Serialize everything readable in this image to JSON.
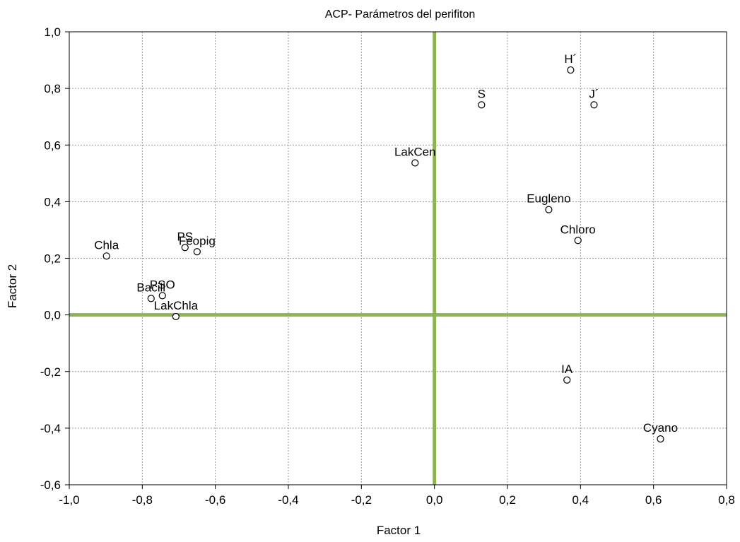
{
  "chart_data": {
    "type": "scatter",
    "title": "ACP- Parámetros del perifiton",
    "xlabel": "Factor 1",
    "ylabel": "Factor 2",
    "xlim": [
      -1.0,
      0.8
    ],
    "ylim": [
      -0.6,
      1.0
    ],
    "x_ticks": [
      "-1,0",
      "-0,8",
      "-0,6",
      "-0,4",
      "-0,2",
      "0,0",
      "0,2",
      "0,4",
      "0,6",
      "0,8"
    ],
    "y_ticks": [
      "-0,6",
      "-0,4",
      "-0,2",
      "0,0",
      "0,2",
      "0,4",
      "0,6",
      "0,8",
      "1,0"
    ],
    "grid": true,
    "reference_lines": {
      "x": 0.0,
      "y": 0.0,
      "color": "#8db356"
    },
    "points": [
      {
        "label": "H´",
        "x": 0.373,
        "y": 0.865
      },
      {
        "label": "J´",
        "x": 0.437,
        "y": 0.742
      },
      {
        "label": "S",
        "x": 0.129,
        "y": 0.742
      },
      {
        "label": "LakCen",
        "x": -0.053,
        "y": 0.537
      },
      {
        "label": "Eugleno",
        "x": 0.313,
        "y": 0.372
      },
      {
        "label": "Chloro",
        "x": 0.393,
        "y": 0.263
      },
      {
        "label": "Chla",
        "x": -0.898,
        "y": 0.208
      },
      {
        "label": "PS",
        "x": -0.683,
        "y": 0.238
      },
      {
        "label": "Feopig",
        "x": -0.65,
        "y": 0.223
      },
      {
        "label": "Bacill",
        "x": -0.776,
        "y": 0.058
      },
      {
        "label": "PSO",
        "x": -0.745,
        "y": 0.068
      },
      {
        "label": "LakChla",
        "x": -0.708,
        "y": -0.006
      },
      {
        "label": "IA",
        "x": 0.363,
        "y": -0.23
      },
      {
        "label": "Cyano",
        "x": 0.619,
        "y": -0.438
      }
    ]
  }
}
